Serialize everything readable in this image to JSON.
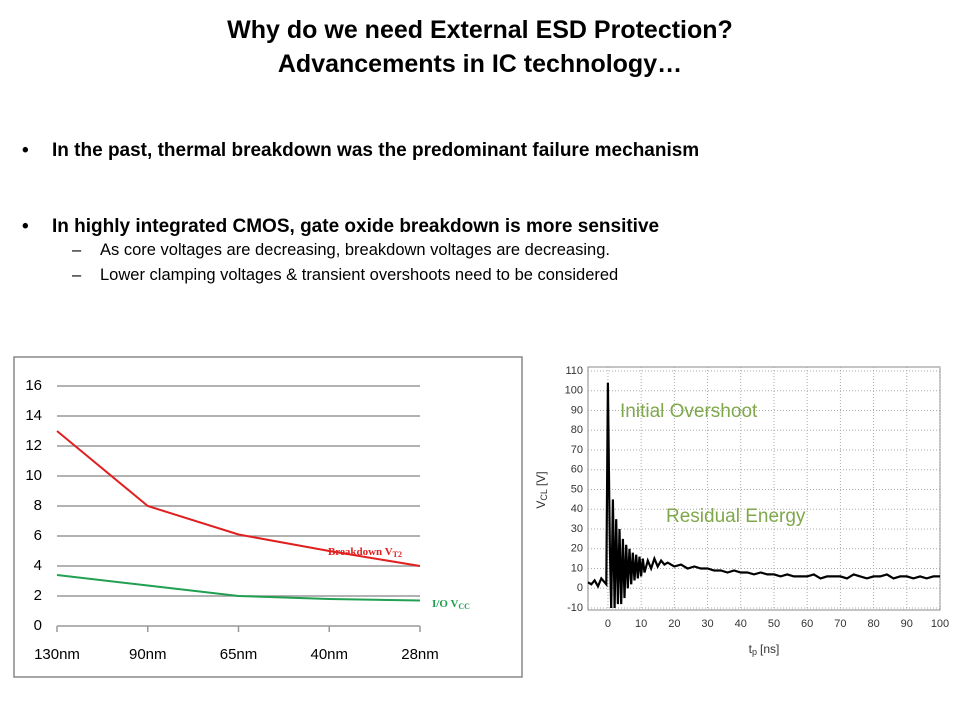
{
  "title": [
    "Why do we need External ESD Protection?",
    "Advancements in IC technology…"
  ],
  "bullets": [
    {
      "text": "In the past, thermal breakdown was the predominant failure mechanism",
      "sub": []
    },
    {
      "text": "In highly integrated CMOS, gate oxide breakdown is more sensitive",
      "sub": [
        "As core voltages are decreasing, breakdown voltages are decreasing.",
        "Lower clamping voltages & transient overshoots need to be considered"
      ]
    }
  ],
  "chart_data": [
    {
      "type": "line",
      "categories": [
        "130nm",
        "90nm",
        "65nm",
        "40nm",
        "28nm"
      ],
      "series": [
        {
          "name": "Breakdown V",
          "subscript": "T2",
          "color": "#e02020",
          "values": [
            13,
            8,
            6.1,
            5,
            4
          ]
        },
        {
          "name": "I/O V",
          "subscript": "CC",
          "color": "#20a050",
          "values": [
            3.4,
            2.7,
            2,
            1.8,
            1.7
          ]
        }
      ],
      "ylim": [
        0,
        16
      ],
      "yticks": [
        0,
        2,
        4,
        6,
        8,
        10,
        12,
        14,
        16
      ],
      "grid": true
    },
    {
      "type": "waveform",
      "xlabel": "t",
      "xlabel_sub": "p",
      "xlabel_unit": "[ns]",
      "ylabel": "V",
      "ylabel_sub": "CL",
      "ylabel_unit": "[V]",
      "annotations": [
        "Initial Overshoot",
        "Residual Energy"
      ],
      "color": "#000000",
      "x": [
        -6,
        -5,
        -4,
        -3,
        -2,
        -1,
        -0.5,
        0,
        0.3,
        0.6,
        1,
        1.5,
        2,
        2.5,
        3,
        3.5,
        4,
        4.5,
        5,
        5.5,
        6,
        6.5,
        7,
        7.5,
        8,
        8.5,
        9,
        9.5,
        10,
        10.5,
        11,
        12,
        13,
        14,
        15,
        16,
        17,
        18,
        19,
        20,
        22,
        24,
        26,
        28,
        30,
        32,
        34,
        36,
        38,
        40,
        42,
        44,
        46,
        48,
        50,
        52,
        54,
        56,
        58,
        60,
        62,
        64,
        66,
        68,
        70,
        72,
        74,
        76,
        78,
        80,
        82,
        84,
        86,
        88,
        90,
        92,
        94,
        96,
        98,
        100
      ],
      "values": [
        3,
        2,
        4,
        1,
        5,
        3,
        2,
        104,
        60,
        20,
        -10,
        45,
        -10,
        35,
        -8,
        30,
        -8,
        25,
        -5,
        22,
        0,
        20,
        2,
        18,
        4,
        17,
        5,
        16,
        6,
        15,
        8,
        14,
        10,
        15,
        11,
        14,
        12,
        13,
        12,
        11,
        12,
        10,
        11,
        10,
        10,
        9,
        9,
        8,
        9,
        8,
        8,
        7,
        8,
        7,
        7,
        6,
        7,
        6,
        6,
        6,
        7,
        5,
        6,
        6,
        6,
        5,
        7,
        6,
        5,
        6,
        6,
        7,
        5,
        6,
        6,
        5,
        6,
        5,
        6,
        6
      ],
      "xlim": [
        -6,
        100
      ],
      "ylim": [
        -11,
        112
      ],
      "xticks": [
        0,
        10,
        20,
        30,
        40,
        50,
        60,
        70,
        80,
        90,
        100
      ],
      "yticks": [
        -10,
        0,
        10,
        20,
        30,
        40,
        50,
        60,
        70,
        80,
        90,
        100,
        110
      ],
      "grid": true
    }
  ]
}
